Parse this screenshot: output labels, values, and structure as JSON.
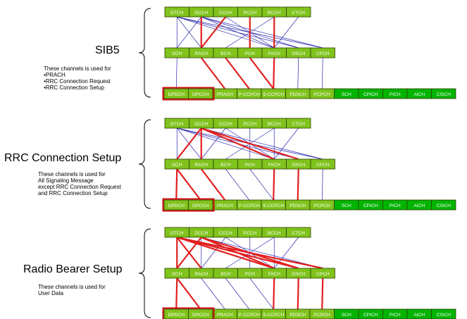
{
  "colors": {
    "box_fill": "#7fc31c",
    "phys_green": "#00b400",
    "box_stroke": "#2f3f00",
    "box_text": "#ffffff",
    "line_thin": "#2b2bb0",
    "line_thick": "#e21f1f",
    "outline": "#d01010"
  },
  "logical_channels": [
    "DTCH",
    "DCCH",
    "CCCH",
    "PCCH",
    "BCCH",
    "CTCH"
  ],
  "transport_channels": [
    "DCH",
    "RACH",
    "BCH",
    "PCH",
    "FACH",
    "DSCH",
    "CPCH"
  ],
  "physical_channels": [
    "DPDCH",
    "DPCCH",
    "PRACH",
    "P-CCPCH",
    "S-CCPCH",
    "PDSCH",
    "PCPCH",
    "SCH",
    "CPICH",
    "PICH",
    "AICH",
    "CSICH"
  ],
  "sections": [
    {
      "title": "SIB5",
      "note": "These channels is used for\n•PRACH\n•RRC Connection Request\n•RRC Connection Setup",
      "thin_top": [
        [
          0,
          0
        ],
        [
          0,
          1
        ],
        [
          0,
          4
        ],
        [
          0,
          5
        ],
        [
          0,
          6
        ],
        [
          1,
          0
        ],
        [
          1,
          4
        ],
        [
          1,
          5
        ],
        [
          1,
          6
        ],
        [
          2,
          4
        ],
        [
          4,
          2
        ],
        [
          5,
          4
        ]
      ],
      "thick_top": [
        [
          1,
          1
        ],
        [
          2,
          1
        ],
        [
          3,
          3
        ],
        [
          4,
          4
        ]
      ],
      "thin_bottom": [
        [
          0,
          0
        ],
        [
          5,
          5
        ],
        [
          6,
          6
        ]
      ],
      "thick_bottom": [
        [
          1,
          2
        ],
        [
          2,
          3
        ],
        [
          3,
          4
        ],
        [
          4,
          4
        ]
      ],
      "outlined": [
        0,
        1
      ]
    },
    {
      "title": "RRC Connection Setup",
      "note": "These channels is used for\nAll Signaling Message\nexcept RRC Connection Request\nand RRC Connection Setup",
      "thin_top": [
        [
          0,
          0
        ],
        [
          0,
          1
        ],
        [
          0,
          4
        ],
        [
          0,
          5
        ],
        [
          0,
          6
        ],
        [
          1,
          6
        ],
        [
          2,
          1
        ],
        [
          2,
          4
        ],
        [
          3,
          3
        ],
        [
          4,
          2
        ],
        [
          4,
          4
        ],
        [
          5,
          4
        ]
      ],
      "thick_top": [
        [
          1,
          0
        ],
        [
          1,
          1
        ],
        [
          1,
          4
        ],
        [
          1,
          5
        ]
      ],
      "thin_bottom": [
        [
          2,
          3
        ],
        [
          3,
          4
        ],
        [
          6,
          6
        ]
      ],
      "thick_bottom": [
        [
          0,
          0
        ],
        [
          0,
          1
        ],
        [
          1,
          2
        ],
        [
          4,
          4
        ],
        [
          5,
          5
        ]
      ],
      "outlined": [
        0,
        1
      ]
    },
    {
      "title": "Radio Bearer Setup",
      "note": "These channels is used for\nUser Data",
      "thin_top": [
        [
          1,
          1
        ],
        [
          1,
          6
        ],
        [
          2,
          1
        ],
        [
          2,
          4
        ],
        [
          3,
          3
        ],
        [
          4,
          2
        ],
        [
          4,
          4
        ],
        [
          5,
          4
        ]
      ],
      "thick_top": [
        [
          0,
          0
        ],
        [
          0,
          1
        ],
        [
          0,
          4
        ],
        [
          0,
          5
        ],
        [
          0,
          6
        ],
        [
          1,
          0
        ],
        [
          1,
          4
        ],
        [
          1,
          5
        ]
      ],
      "thin_bottom": [
        [
          1,
          2
        ],
        [
          2,
          3
        ],
        [
          3,
          4
        ]
      ],
      "thick_bottom": [
        [
          0,
          0
        ],
        [
          0,
          1
        ],
        [
          4,
          4
        ],
        [
          5,
          5
        ],
        [
          6,
          6
        ]
      ],
      "outlined": [
        0,
        1
      ]
    }
  ]
}
